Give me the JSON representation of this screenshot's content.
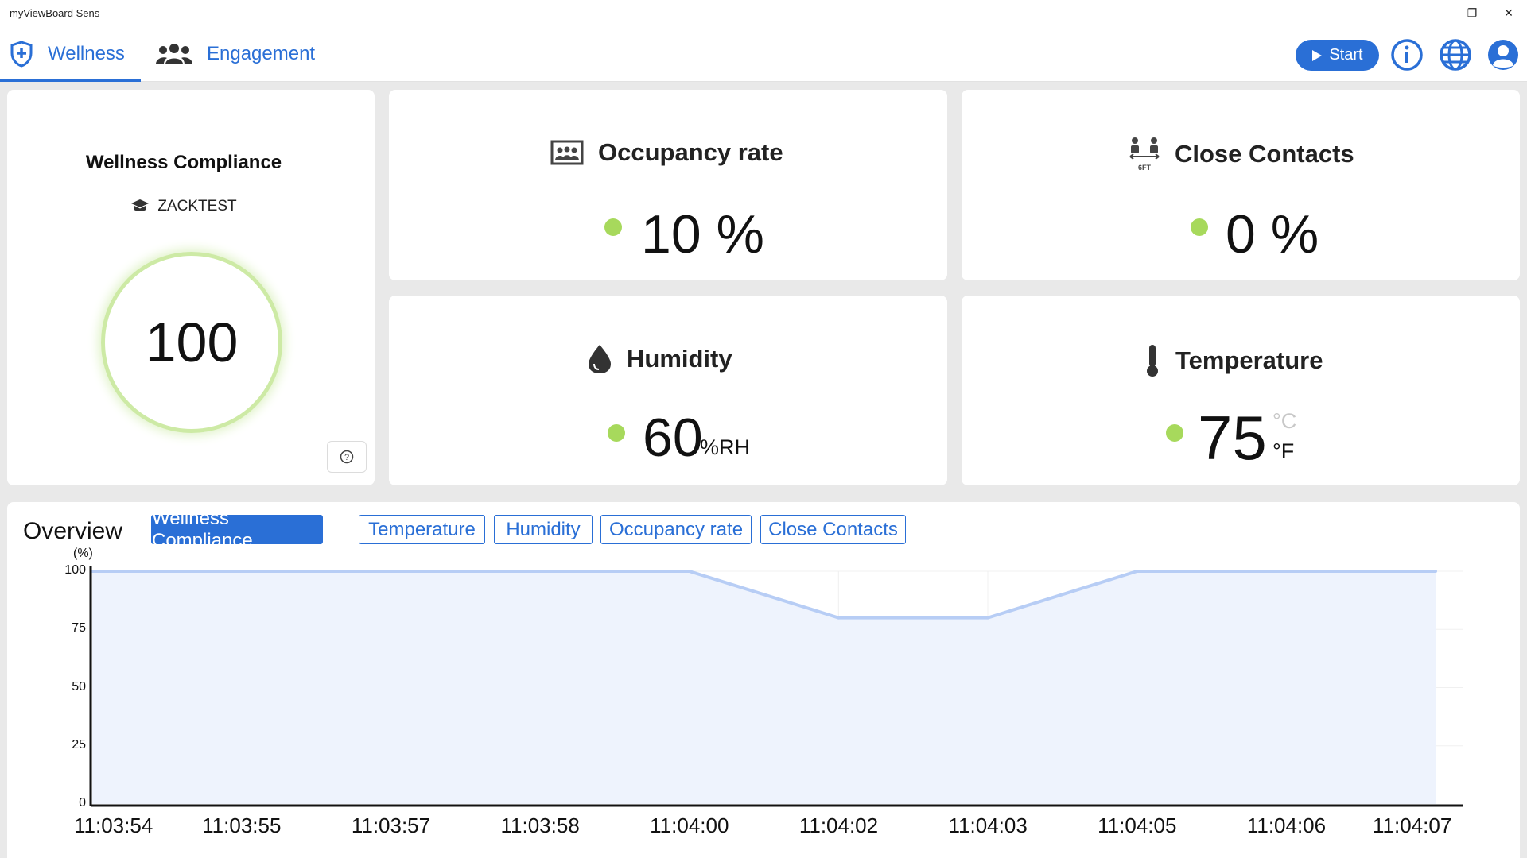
{
  "window": {
    "title": "myViewBoard Sens",
    "minimize": "–",
    "restore": "❐",
    "close": "✕"
  },
  "nav": {
    "tabs": [
      {
        "label": "Wellness",
        "icon": "shield-plus-icon",
        "active": true
      },
      {
        "label": "Engagement",
        "icon": "group-icon",
        "active": false
      }
    ],
    "start_label": "Start",
    "icons": [
      "info-icon",
      "globe-icon",
      "user-icon"
    ]
  },
  "wellness": {
    "title": "Wellness Compliance",
    "room": "ZACKTEST",
    "score": "100",
    "help": "?"
  },
  "occupancy": {
    "title": "Occupancy rate",
    "value": "10",
    "unit": "%"
  },
  "contacts": {
    "title": "Close Contacts",
    "value": "0",
    "unit": "%",
    "icon_caption": "6FT"
  },
  "humidity": {
    "title": "Humidity",
    "value": "60",
    "unit": "%RH"
  },
  "temperature": {
    "title": "Temperature",
    "value": "75",
    "unit_inactive": "°C",
    "unit_active": "°F"
  },
  "colors": {
    "accent": "#2a6fd6",
    "status_ok": "#a7d95c",
    "ring": "#cdeaa5",
    "area_fill": "#eef3fd",
    "line": "#b7cdf5"
  },
  "overview": {
    "title": "Overview",
    "tabs": [
      "Wellness Compliance",
      "Temperature",
      "Humidity",
      "Occupancy rate",
      "Close Contacts"
    ],
    "active_tab": "Wellness Compliance"
  },
  "chart_data": {
    "type": "area",
    "title": "",
    "ylabel": "(%)",
    "xlabel": "",
    "ylim": [
      0,
      100
    ],
    "yticks": [
      "100",
      "75",
      "50",
      "25",
      "0"
    ],
    "x": [
      "11:03:54",
      "11:03:55",
      "11:03:57",
      "11:03:58",
      "11:04:00",
      "11:04:02",
      "11:04:03",
      "11:04:05",
      "11:04:06",
      "11:04:07"
    ],
    "series": [
      {
        "values": [
          100,
          100,
          100,
          100,
          100,
          80,
          80,
          100,
          100,
          100
        ]
      }
    ],
    "grid": true
  }
}
